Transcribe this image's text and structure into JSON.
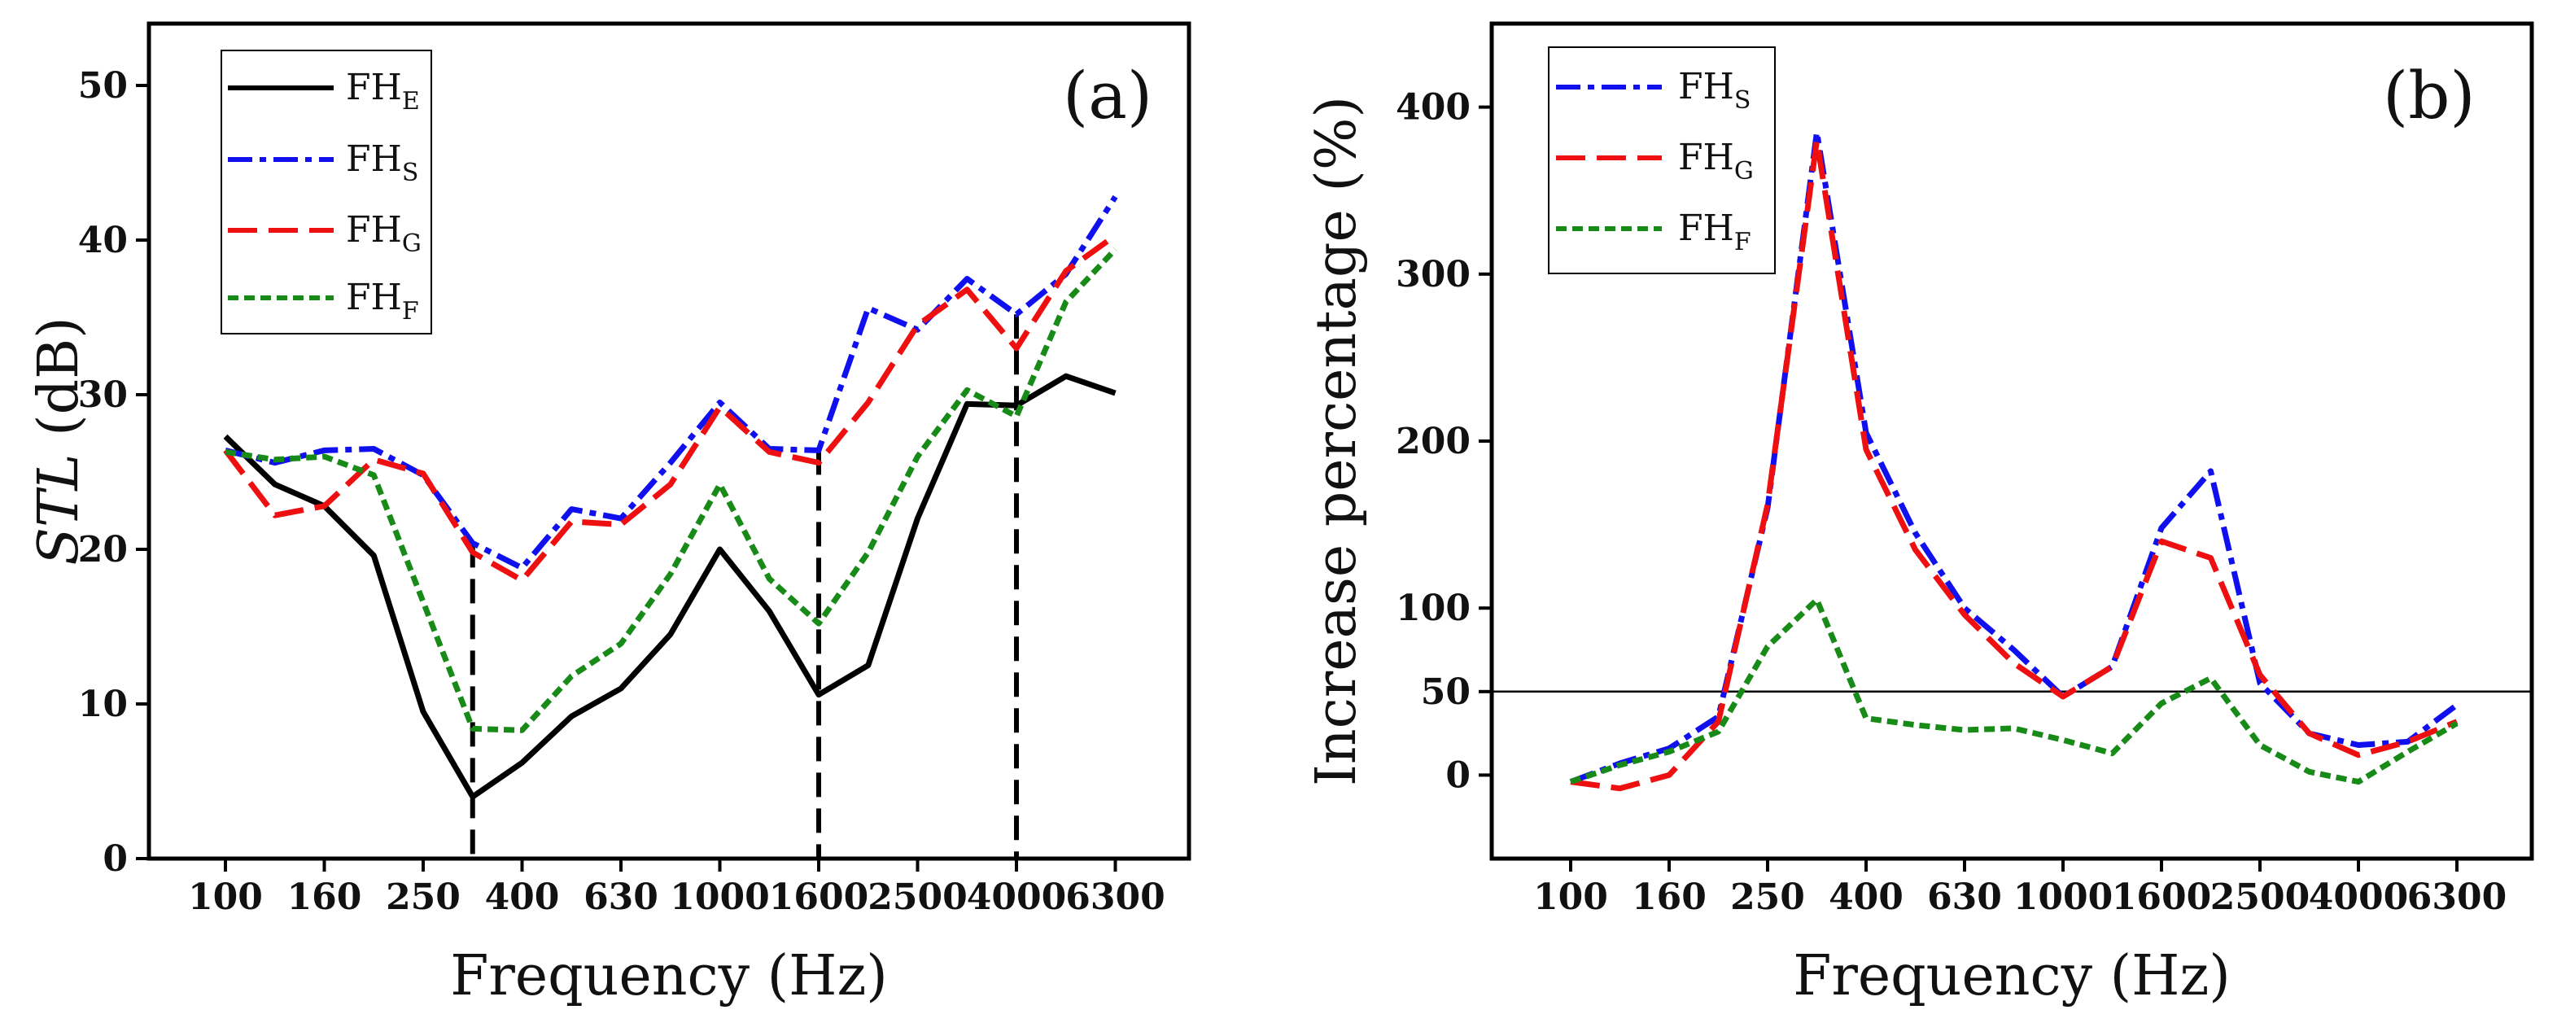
{
  "chart_data": [
    {
      "type": "line",
      "panel_label": "(a)",
      "xlabel": "Frequency (Hz)",
      "ylabel_italic": "STL",
      "ylabel_unit": " (dB)",
      "ylim": [
        0,
        54
      ],
      "yticks": [
        0,
        10,
        20,
        30,
        40,
        50
      ],
      "ytick_labels": [
        "0",
        "10",
        "20",
        "30",
        "40",
        "50"
      ],
      "x": [
        "100",
        "125",
        "160",
        "200",
        "250",
        "315",
        "400",
        "500",
        "630",
        "800",
        "1000",
        "1250",
        "1600",
        "2000",
        "2500",
        "3150",
        "4000",
        "5000",
        "6300"
      ],
      "xtick_labels": [
        "100",
        "160",
        "250",
        "400",
        "630",
        "1000",
        "1600",
        "2500",
        "4000",
        "6300"
      ],
      "legend_position": "top-left",
      "series": [
        {
          "name": "FH",
          "sub": "E",
          "color": "#000000",
          "style": "solid",
          "values": [
            27.3,
            24.2,
            22.8,
            19.6,
            9.5,
            4.0,
            6.2,
            9.2,
            11.0,
            14.5,
            20.0,
            16.0,
            10.6,
            12.5,
            22.0,
            29.4,
            29.3,
            31.2,
            30.1
          ]
        },
        {
          "name": "FH",
          "sub": "S",
          "color": "#1010ee",
          "style": "dashdot",
          "values": [
            26.4,
            25.6,
            26.4,
            26.5,
            24.8,
            20.4,
            18.8,
            22.6,
            22.0,
            25.6,
            29.5,
            26.5,
            26.4,
            35.6,
            34.2,
            37.5,
            35.2,
            37.8,
            42.8
          ]
        },
        {
          "name": "FH",
          "sub": "G",
          "color": "#ee1010",
          "style": "dashed",
          "values": [
            26.4,
            22.2,
            22.8,
            25.8,
            24.9,
            19.8,
            18.0,
            21.8,
            21.6,
            24.2,
            29.2,
            26.3,
            25.6,
            29.5,
            34.5,
            36.8,
            33.0,
            38.0,
            40.3
          ]
        },
        {
          "name": "FH",
          "sub": "F",
          "color": "#178a17",
          "style": "dotted",
          "values": [
            26.3,
            25.8,
            26.0,
            24.8,
            16.6,
            8.4,
            8.3,
            11.8,
            13.9,
            18.4,
            24.2,
            18.1,
            15.2,
            19.8,
            26.0,
            30.3,
            28.6,
            36.0,
            39.4
          ]
        }
      ],
      "reference_lines": [
        {
          "x": "315",
          "top": 20.4
        },
        {
          "x": "1600",
          "top": 26.4
        },
        {
          "x": "4000",
          "top": 35.2
        }
      ]
    },
    {
      "type": "line",
      "panel_label": "(b)",
      "xlabel": "Frequency (Hz)",
      "ylabel": "Increase percentage (%)",
      "ylim": [
        -50,
        450
      ],
      "yticks": [
        0,
        50,
        100,
        200,
        300,
        400
      ],
      "ytick_labels": [
        "0",
        "50",
        "100",
        "200",
        "300",
        "400"
      ],
      "x": [
        "100",
        "125",
        "160",
        "200",
        "250",
        "315",
        "400",
        "500",
        "630",
        "800",
        "1000",
        "1250",
        "1600",
        "2000",
        "2500",
        "3150",
        "4000",
        "5000",
        "6300"
      ],
      "xtick_labels": [
        "100",
        "160",
        "250",
        "400",
        "630",
        "1000",
        "1600",
        "2500",
        "4000",
        "6300"
      ],
      "legend_position": "top-left",
      "hline": 50,
      "series": [
        {
          "name": "FH",
          "sub": "S",
          "color": "#1010ee",
          "style": "dashdot",
          "values": [
            -4,
            7,
            16,
            35,
            160,
            385,
            205,
            145,
            100,
            75,
            47,
            65,
            148,
            182,
            55,
            25,
            18,
            20,
            42
          ]
        },
        {
          "name": "FH",
          "sub": "G",
          "color": "#ee1010",
          "style": "dashed",
          "values": [
            -4,
            -8,
            0,
            32,
            162,
            380,
            195,
            135,
            96,
            67,
            47,
            65,
            140,
            130,
            60,
            25,
            12,
            20,
            32
          ]
        },
        {
          "name": "FH",
          "sub": "F",
          "color": "#178a17",
          "style": "dotted",
          "values": [
            -4,
            6,
            14,
            26,
            77,
            105,
            34,
            30,
            27,
            28,
            21,
            13,
            43,
            58,
            18,
            2,
            -4,
            14,
            31
          ]
        }
      ]
    }
  ]
}
